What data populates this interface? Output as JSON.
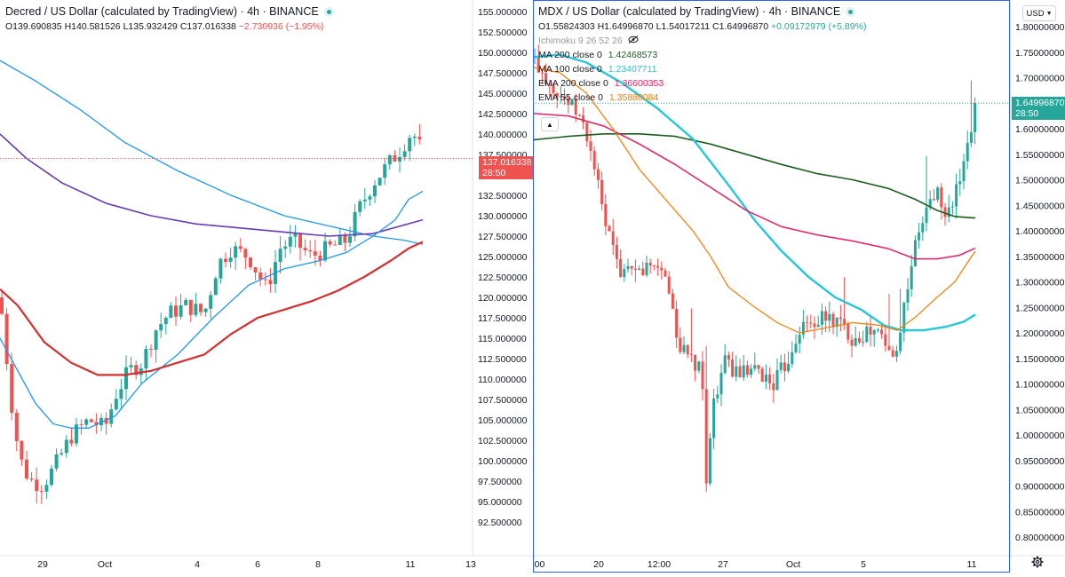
{
  "left": {
    "title": "Decred / US Dollar (calculated by TradingView) · 4h · BINANCE",
    "ohlc": {
      "o": "O139.690835",
      "h": "H140.581526",
      "l": "L135.932429",
      "c": "C137.016338",
      "chg": "−2.730936 (−1.95%)"
    },
    "price_tag": {
      "value": "137.016338",
      "time": "28:50",
      "color": "#ef5350"
    },
    "price_axis": [
      "155.000000",
      "152.500000",
      "150.000000",
      "147.500000",
      "145.000000",
      "142.500000",
      "140.000000",
      "137.500000",
      "135.000000",
      "132.500000",
      "130.000000",
      "127.500000",
      "125.000000",
      "122.500000",
      "120.000000",
      "117.500000",
      "115.000000",
      "112.500000",
      "110.000000",
      "107.500000",
      "105.000000",
      "102.500000",
      "100.000000",
      "97.500000",
      "95.000000",
      "92.500000"
    ],
    "time_axis": [
      "29",
      "Oct",
      "4",
      "6",
      "8",
      "11",
      "13"
    ]
  },
  "right": {
    "title": "MDX / US Dollar (calculated by TradingView) · 4h · BINANCE",
    "ohlc": {
      "o": "O1.55824303",
      "h": "H1.64996870",
      "l": "L1.54017211",
      "c": "C1.64996870",
      "chg": "+0.09172979 (+5.89%)"
    },
    "indicators": [
      {
        "label": "Ichimoku 9 26 52 26",
        "value": "",
        "color": "#9598a1",
        "faint": true
      },
      {
        "label": "MA 200 close 0",
        "value": "1.42468573",
        "color": "#1b5e20"
      },
      {
        "label": "MA 100 close 0",
        "value": "1.23407711",
        "color": "#26c6da"
      },
      {
        "label": "EMA 200 close 0",
        "value": "1.36600353",
        "color": "#e91e63"
      },
      {
        "label": "EMA 55 close 0",
        "value": "1.35880084",
        "color": "#f57c00"
      }
    ],
    "currency": "USD",
    "price_tag": {
      "value": "1.64996870",
      "time": "28:50",
      "color": "#26a69a"
    },
    "price_axis": [
      "1.80000000",
      "1.75000000",
      "1.70000000",
      "1.65000000",
      "1.60000000",
      "1.55000000",
      "1.50000000",
      "1.45000000",
      "1.40000000",
      "1.35000000",
      "1.30000000",
      "1.25000000",
      "1.20000000",
      "1.15000000",
      "1.10000000",
      "1.05000000",
      "1.00000000",
      "0.95000000",
      "0.90000000",
      "0.85000000",
      "0.80000000"
    ],
    "time_axis": [
      ":00",
      "20",
      "12:00",
      "27",
      "Oct",
      "5",
      "11"
    ]
  },
  "colors": {
    "up": "#26a69a",
    "down": "#ef5350",
    "accent": "#2962ff"
  },
  "icons": [
    "live-dot-icon",
    "eye-hidden-icon",
    "chevron-up-icon",
    "chevron-down-icon",
    "gear-icon"
  ]
}
